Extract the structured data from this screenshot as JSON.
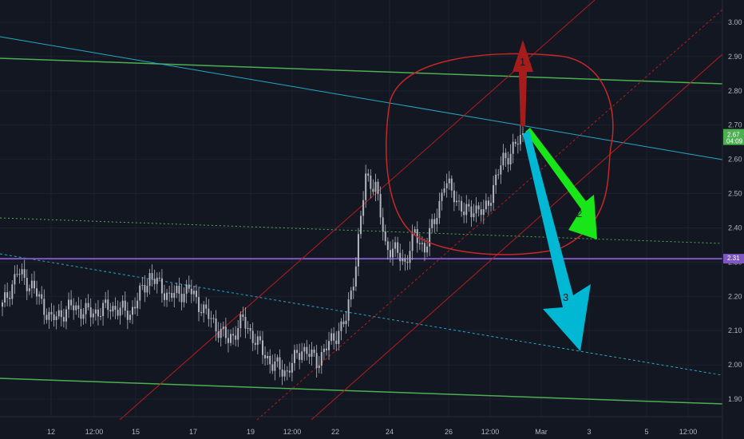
{
  "chart_data": {
    "type": "candlestick",
    "colors": {
      "background": "#131722",
      "grid": "#1e2230",
      "axis_text": "#b2b5be",
      "candle": "#b2b5be",
      "green_line": "#4caf50",
      "teal_line": "#26a8c4",
      "purple_line": "#7e57c2",
      "channel_red": "#b71c1c",
      "circle_red": "#c62828",
      "arrow1": "#a51c1c",
      "arrow2": "#19e619",
      "arrow3": "#00b8d4",
      "current_price_tag": "#4caf50",
      "level_tag": "#7e57c2"
    },
    "y_axis": {
      "ticks": [
        "3.00",
        "2.90",
        "2.80",
        "2.70",
        "2.60",
        "2.50",
        "2.40",
        "2.30",
        "2.20",
        "2.10",
        "2.00",
        "1.90"
      ],
      "ylim": [
        1.85,
        3.05
      ]
    },
    "x_axis": {
      "ticks": [
        "12",
        "12:00",
        "15",
        "17",
        "19",
        "12:00",
        "22",
        "24",
        "26",
        "12:00",
        "Mar",
        "3",
        "5",
        "12:00"
      ]
    },
    "price_tags": [
      {
        "role": "current",
        "value": 2.67,
        "line1": "2.67",
        "line2": "04:09"
      },
      {
        "role": "level",
        "value": 2.31,
        "line1": "2.31",
        "line2": ""
      }
    ],
    "annotations": [
      "1",
      "2",
      "3"
    ],
    "close_points": [
      {
        "i": 0,
        "y": 2.17
      },
      {
        "i": 6,
        "y": 2.27
      },
      {
        "i": 12,
        "y": 2.23
      },
      {
        "i": 20,
        "y": 2.13
      },
      {
        "i": 28,
        "y": 2.17
      },
      {
        "i": 36,
        "y": 2.15
      },
      {
        "i": 44,
        "y": 2.17
      },
      {
        "i": 52,
        "y": 2.15
      },
      {
        "i": 60,
        "y": 2.26
      },
      {
        "i": 68,
        "y": 2.2
      },
      {
        "i": 76,
        "y": 2.22
      },
      {
        "i": 84,
        "y": 2.14
      },
      {
        "i": 92,
        "y": 2.07
      },
      {
        "i": 98,
        "y": 2.13
      },
      {
        "i": 104,
        "y": 2.06
      },
      {
        "i": 110,
        "y": 2.0
      },
      {
        "i": 116,
        "y": 1.98
      },
      {
        "i": 122,
        "y": 2.05
      },
      {
        "i": 128,
        "y": 2.01
      },
      {
        "i": 134,
        "y": 2.07
      },
      {
        "i": 140,
        "y": 2.13
      },
      {
        "i": 144,
        "y": 2.3
      },
      {
        "i": 148,
        "y": 2.55
      },
      {
        "i": 152,
        "y": 2.52
      },
      {
        "i": 156,
        "y": 2.35
      },
      {
        "i": 160,
        "y": 2.33
      },
      {
        "i": 164,
        "y": 2.3
      },
      {
        "i": 168,
        "y": 2.38
      },
      {
        "i": 172,
        "y": 2.34
      },
      {
        "i": 176,
        "y": 2.42
      },
      {
        "i": 180,
        "y": 2.53
      },
      {
        "i": 184,
        "y": 2.5
      },
      {
        "i": 188,
        "y": 2.44
      },
      {
        "i": 192,
        "y": 2.46
      },
      {
        "i": 196,
        "y": 2.44
      },
      {
        "i": 200,
        "y": 2.52
      },
      {
        "i": 204,
        "y": 2.6
      },
      {
        "i": 208,
        "y": 2.63
      },
      {
        "i": 212,
        "y": 2.67
      }
    ]
  }
}
